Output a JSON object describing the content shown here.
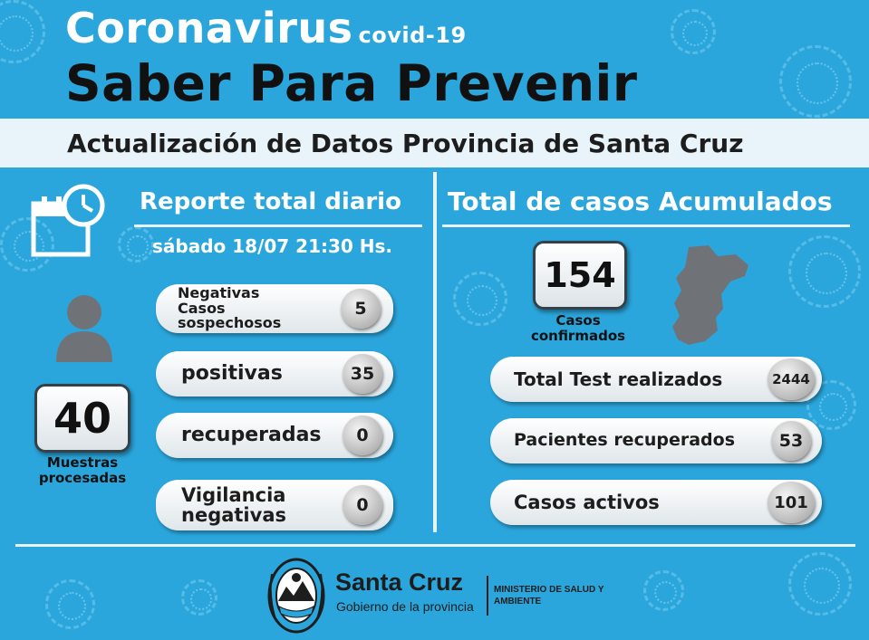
{
  "header": {
    "title": "Coronavirus",
    "title_small": "covid-19",
    "subtitle": "Saber Para Prevenir",
    "banner": "Actualización de Datos Provincia de Santa Cruz"
  },
  "daily": {
    "heading": "Reporte total diario",
    "date": "sábado 18/07 21:30 Hs.",
    "samples_value": "40",
    "samples_label": "Muestras procesadas",
    "items": [
      {
        "label": "Negativas Casos sospechosos",
        "value": "5"
      },
      {
        "label": "positivas",
        "value": "35"
      },
      {
        "label": "recuperadas",
        "value": "0"
      },
      {
        "label": "Vigilancia negativas",
        "value": "0"
      }
    ]
  },
  "cumulative": {
    "heading": "Total de casos Acumulados",
    "confirmed_value": "154",
    "confirmed_label": "Casos confirmados",
    "items": [
      {
        "label": "Total Test realizados",
        "value": "2444"
      },
      {
        "label": "Pacientes recuperados",
        "value": "53"
      },
      {
        "label": "Casos activos",
        "value": "101"
      }
    ]
  },
  "footer": {
    "brand": "Santa Cruz",
    "brand_sub": "Gobierno de la provincia",
    "ministry": "MINISTERIO DE SALUD Y AMBIENTE"
  },
  "colors": {
    "background": "#2ba6dc",
    "panel": "#e8f4fa",
    "map": "#6f7377",
    "circle": "#9d9d9d"
  }
}
